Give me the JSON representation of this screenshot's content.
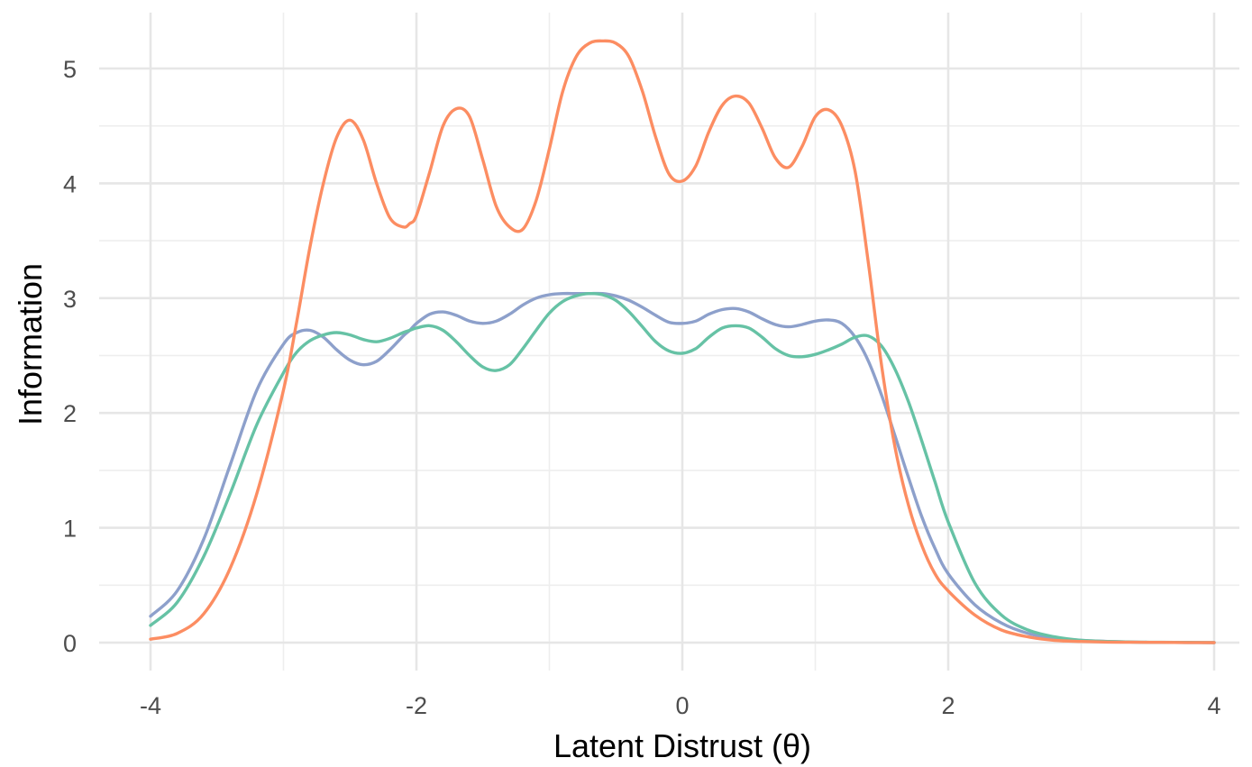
{
  "chart_data": {
    "type": "line",
    "xlabel": "Latent Distrust (θ)",
    "ylabel": "Information",
    "xlim": [
      -4,
      4
    ],
    "ylim": [
      0,
      5.3
    ],
    "x_ticks": [
      -4,
      -2,
      0,
      2,
      4
    ],
    "y_ticks": [
      0,
      1,
      2,
      3,
      4,
      5
    ],
    "x_tick_labels": [
      "-4",
      "-2",
      "0",
      "2",
      "4"
    ],
    "y_tick_labels": [
      "0",
      "1",
      "2",
      "3",
      "4",
      "5"
    ],
    "grid": true,
    "legend": "none",
    "x": [
      -4.0,
      -3.8,
      -3.6,
      -3.4,
      -3.2,
      -3.0,
      -2.9,
      -2.8,
      -2.7,
      -2.6,
      -2.5,
      -2.4,
      -2.3,
      -2.2,
      -2.1,
      -2.05,
      -2.0,
      -1.9,
      -1.8,
      -1.7,
      -1.6,
      -1.5,
      -1.4,
      -1.3,
      -1.2,
      -1.1,
      -1.0,
      -0.9,
      -0.8,
      -0.7,
      -0.6,
      -0.5,
      -0.4,
      -0.3,
      -0.2,
      -0.1,
      0.0,
      0.1,
      0.2,
      0.3,
      0.4,
      0.5,
      0.6,
      0.7,
      0.8,
      0.9,
      1.0,
      1.1,
      1.2,
      1.3,
      1.4,
      1.5,
      1.6,
      1.7,
      1.8,
      1.9,
      2.0,
      2.2,
      2.4,
      2.6,
      2.8,
      3.0,
      3.2,
      3.4,
      3.6,
      3.8,
      4.0
    ],
    "series": [
      {
        "color": "#fc8d62",
        "values": [
          0.03,
          0.08,
          0.25,
          0.65,
          1.3,
          2.2,
          2.8,
          3.45,
          4.0,
          4.4,
          4.55,
          4.38,
          4.0,
          3.7,
          3.62,
          3.65,
          3.72,
          4.1,
          4.5,
          4.65,
          4.58,
          4.2,
          3.8,
          3.62,
          3.6,
          3.85,
          4.3,
          4.8,
          5.1,
          5.22,
          5.24,
          5.22,
          5.1,
          4.8,
          4.4,
          4.08,
          4.02,
          4.15,
          4.45,
          4.68,
          4.76,
          4.7,
          4.48,
          4.22,
          4.14,
          4.32,
          4.58,
          4.64,
          4.5,
          4.1,
          3.3,
          2.4,
          1.7,
          1.2,
          0.85,
          0.6,
          0.45,
          0.24,
          0.11,
          0.05,
          0.02,
          0.01,
          0.005,
          0.003,
          0.002,
          0.001,
          0.0
        ]
      },
      {
        "color": "#66c2a5",
        "values": [
          0.15,
          0.35,
          0.75,
          1.3,
          1.9,
          2.35,
          2.53,
          2.63,
          2.68,
          2.7,
          2.68,
          2.64,
          2.62,
          2.65,
          2.7,
          2.72,
          2.74,
          2.76,
          2.72,
          2.62,
          2.5,
          2.4,
          2.37,
          2.42,
          2.56,
          2.72,
          2.87,
          2.97,
          3.02,
          3.04,
          3.03,
          2.98,
          2.88,
          2.75,
          2.62,
          2.54,
          2.52,
          2.56,
          2.66,
          2.74,
          2.76,
          2.74,
          2.66,
          2.56,
          2.5,
          2.49,
          2.51,
          2.55,
          2.6,
          2.66,
          2.67,
          2.58,
          2.38,
          2.1,
          1.76,
          1.4,
          1.05,
          0.52,
          0.24,
          0.11,
          0.05,
          0.02,
          0.01,
          0.005,
          0.003,
          0.002,
          0.001
        ]
      },
      {
        "color": "#8da0cb",
        "values": [
          0.23,
          0.45,
          0.9,
          1.55,
          2.2,
          2.6,
          2.7,
          2.72,
          2.66,
          2.55,
          2.46,
          2.42,
          2.45,
          2.55,
          2.67,
          2.72,
          2.78,
          2.86,
          2.88,
          2.85,
          2.8,
          2.78,
          2.8,
          2.86,
          2.94,
          3.0,
          3.03,
          3.04,
          3.04,
          3.04,
          3.04,
          3.02,
          2.98,
          2.92,
          2.85,
          2.79,
          2.78,
          2.8,
          2.86,
          2.9,
          2.91,
          2.88,
          2.82,
          2.77,
          2.75,
          2.77,
          2.8,
          2.81,
          2.78,
          2.66,
          2.45,
          2.15,
          1.8,
          1.44,
          1.1,
          0.82,
          0.6,
          0.33,
          0.17,
          0.08,
          0.04,
          0.02,
          0.01,
          0.005,
          0.002,
          0.001,
          0.0
        ]
      }
    ]
  }
}
